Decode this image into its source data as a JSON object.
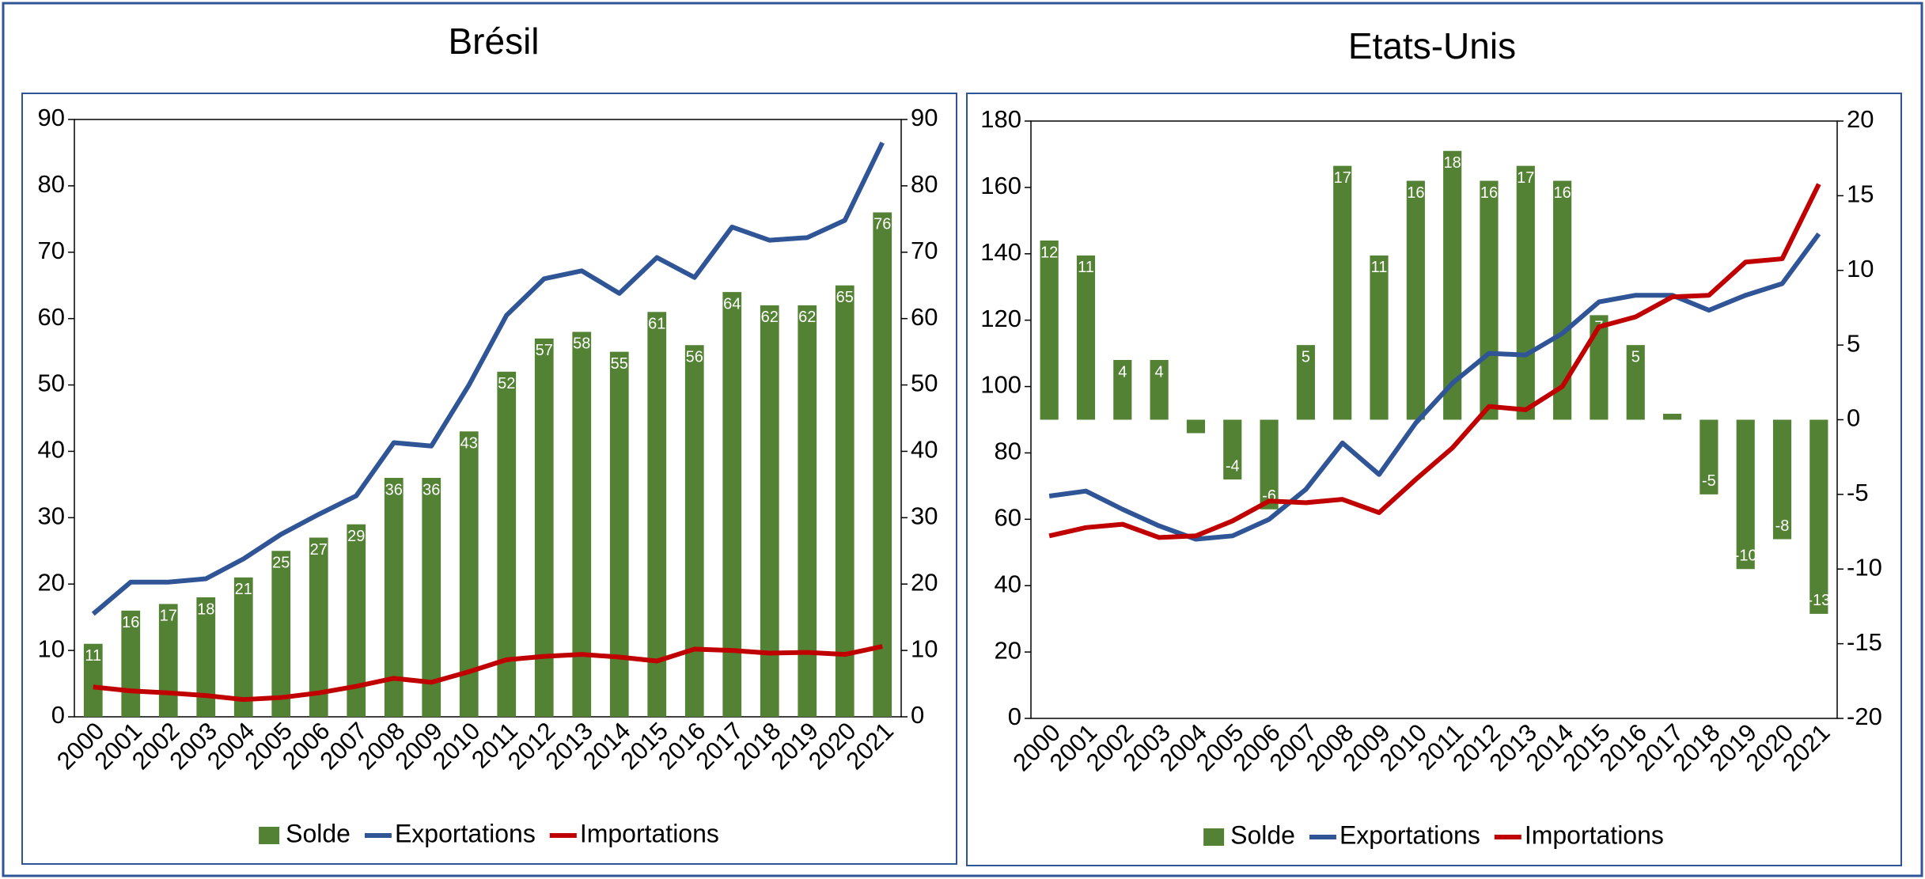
{
  "chart_data": [
    {
      "type": "bar",
      "title": "Brésil",
      "categories": [
        "2000",
        "2001",
        "2002",
        "2003",
        "2004",
        "2005",
        "2006",
        "2007",
        "2008",
        "2009",
        "2010",
        "2011",
        "2012",
        "2013",
        "2014",
        "2015",
        "2016",
        "2017",
        "2018",
        "2019",
        "2020",
        "2021"
      ],
      "series": [
        {
          "name": "Solde",
          "type": "bar",
          "axis": "y",
          "color": "#548235",
          "values": [
            11,
            16,
            17,
            18,
            21,
            25,
            27,
            29,
            36,
            36,
            43,
            52,
            57,
            58,
            55,
            61,
            56,
            64,
            62,
            62,
            65,
            76
          ]
        },
        {
          "name": "Exportations",
          "type": "line",
          "axis": "y",
          "color": "#2f5597",
          "values": [
            15.5,
            20.3,
            20.3,
            20.8,
            23.8,
            27.5,
            30.5,
            33.3,
            41.3,
            40.8,
            50,
            60.5,
            66,
            67.2,
            63.8,
            69.2,
            66.2,
            73.8,
            71.8,
            72.2,
            74.8,
            86.5
          ]
        },
        {
          "name": "Importations",
          "type": "line",
          "axis": "y",
          "color": "#c00000",
          "values": [
            4.5,
            3.9,
            3.6,
            3.2,
            2.6,
            2.9,
            3.6,
            4.6,
            5.8,
            5.2,
            6.8,
            8.6,
            9.1,
            9.4,
            9.0,
            8.4,
            10.2,
            10.0,
            9.6,
            9.7,
            9.4,
            10.6
          ]
        }
      ],
      "ylim": [
        0,
        90
      ],
      "yticks": [
        0,
        10,
        20,
        30,
        40,
        50,
        60,
        70,
        80,
        90
      ],
      "y2lim": [
        0,
        90
      ],
      "y2ticks": [
        0,
        10,
        20,
        30,
        40,
        50,
        60,
        70,
        80,
        90
      ]
    },
    {
      "type": "bar",
      "title": "Etats-Unis",
      "categories": [
        "2000",
        "2001",
        "2002",
        "2003",
        "2004",
        "2005",
        "2006",
        "2007",
        "2008",
        "2009",
        "2010",
        "2011",
        "2012",
        "2013",
        "2014",
        "2015",
        "2016",
        "2017",
        "2018",
        "2019",
        "2020",
        "2021"
      ],
      "series": [
        {
          "name": "Solde",
          "type": "bar",
          "axis": "y2",
          "color": "#548235",
          "values": [
            12,
            11,
            4,
            4,
            -0.9,
            -4,
            -6,
            5,
            17,
            11,
            16,
            18,
            16,
            17,
            16,
            7,
            5,
            0.4,
            -5,
            -10,
            -8,
            -13
          ],
          "value_labels": [
            "12",
            "11",
            "4",
            "4",
            null,
            "-4",
            "-6",
            "5",
            "17",
            "11",
            "16",
            "18",
            "16",
            "17",
            "16",
            "7",
            "5",
            null,
            "-5",
            "-10",
            "-8",
            "-13"
          ]
        },
        {
          "name": "Exportations",
          "type": "line",
          "axis": "y",
          "color": "#2f5597",
          "values": [
            67,
            68.5,
            63,
            58,
            54,
            55,
            60,
            69,
            83,
            73.5,
            89,
            101,
            110,
            109.5,
            116,
            125.5,
            127.5,
            127.5,
            123,
            127.5,
            131,
            146
          ]
        },
        {
          "name": "Importations",
          "type": "line",
          "axis": "y",
          "color": "#c00000",
          "values": [
            55,
            57.5,
            58.5,
            54.5,
            55,
            59.5,
            65.5,
            65,
            66,
            62,
            72,
            81.5,
            94,
            93,
            100,
            118,
            121,
            127,
            127.5,
            137.5,
            138.5,
            161
          ]
        }
      ],
      "ylim": [
        0,
        180
      ],
      "yticks": [
        0,
        20,
        40,
        60,
        80,
        100,
        120,
        140,
        160,
        180
      ],
      "y2lim": [
        -20,
        20
      ],
      "y2ticks": [
        -20,
        -15,
        -10,
        -5,
        0,
        5,
        10,
        15,
        20
      ]
    }
  ]
}
